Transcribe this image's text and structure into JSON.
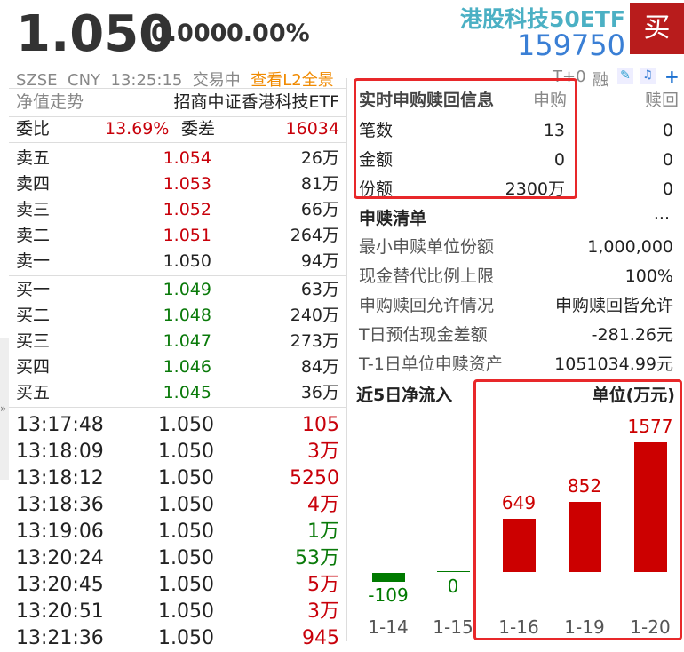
{
  "header": {
    "price": "1.050",
    "change": "0.000",
    "change_pct": "0.00%",
    "name": "港股科技50ETF",
    "code": "159750",
    "buy_label": "买",
    "exchange": "SZSE",
    "currency": "CNY",
    "time": "13:25:15",
    "status": "交易中",
    "l2_link": "查看L2全景",
    "t0": "T+0",
    "margin": "融"
  },
  "left": {
    "nav_label": "净值走势",
    "fund_name": "招商中证香港科技ETF",
    "weibi_label": "委比",
    "weibi": "13.69%",
    "weicha_label": "委差",
    "weicha": "16034",
    "asks": [
      {
        "label": "卖五",
        "price": "1.054",
        "vol": "26万"
      },
      {
        "label": "卖四",
        "price": "1.053",
        "vol": "81万"
      },
      {
        "label": "卖三",
        "price": "1.052",
        "vol": "66万"
      },
      {
        "label": "卖二",
        "price": "1.051",
        "vol": "264万"
      },
      {
        "label": "卖一",
        "price": "1.050",
        "vol": "94万"
      }
    ],
    "bids": [
      {
        "label": "买一",
        "price": "1.049",
        "vol": "63万"
      },
      {
        "label": "买二",
        "price": "1.048",
        "vol": "240万"
      },
      {
        "label": "买三",
        "price": "1.047",
        "vol": "273万"
      },
      {
        "label": "买四",
        "price": "1.046",
        "vol": "84万"
      },
      {
        "label": "买五",
        "price": "1.045",
        "vol": "36万"
      }
    ],
    "trades": [
      {
        "time": "13:17:48",
        "price": "1.050",
        "vol": "105",
        "dir": "up"
      },
      {
        "time": "13:18:09",
        "price": "1.050",
        "vol": "3万",
        "dir": "up"
      },
      {
        "time": "13:18:12",
        "price": "1.050",
        "vol": "5250",
        "dir": "up"
      },
      {
        "time": "13:18:36",
        "price": "1.050",
        "vol": "4万",
        "dir": "up"
      },
      {
        "time": "13:19:06",
        "price": "1.050",
        "vol": "1万",
        "dir": "down"
      },
      {
        "time": "13:20:24",
        "price": "1.050",
        "vol": "53万",
        "dir": "down"
      },
      {
        "time": "13:20:45",
        "price": "1.050",
        "vol": "5万",
        "dir": "up"
      },
      {
        "time": "13:20:51",
        "price": "1.050",
        "vol": "3万",
        "dir": "up"
      },
      {
        "time": "13:21:36",
        "price": "1.050",
        "vol": "945",
        "dir": "up"
      }
    ]
  },
  "realtime": {
    "title": "实时申购赎回信息",
    "col_sub": "申购",
    "col_red": "赎回",
    "rows": [
      {
        "label": "笔数",
        "sub": "13",
        "red": "0"
      },
      {
        "label": "金额",
        "sub": "0",
        "red": "0"
      },
      {
        "label": "份额",
        "sub": "2300万",
        "red": "0"
      }
    ]
  },
  "list": {
    "title": "申赎清单",
    "more": "···",
    "rows": [
      {
        "label": "最小申赎单位份额",
        "value": "1,000,000"
      },
      {
        "label": "现金替代比例上限",
        "value": "100%"
      },
      {
        "label": "申购赎回允许情况",
        "value": "申购赎回皆允许"
      },
      {
        "label": "T日预估现金差额",
        "value": "-281.26元"
      },
      {
        "label": "T-1日单位申赎资产",
        "value": "1051034.99元"
      }
    ]
  },
  "chart_data": {
    "type": "bar",
    "title": "近5日净流入",
    "unit": "单位(万元)",
    "categories": [
      "1-14",
      "1-15",
      "1-16",
      "1-19",
      "1-20"
    ],
    "values": [
      -109,
      0,
      649,
      852,
      1577
    ],
    "colors": {
      "positive": "#cc0000",
      "negative": "#007a00"
    }
  }
}
